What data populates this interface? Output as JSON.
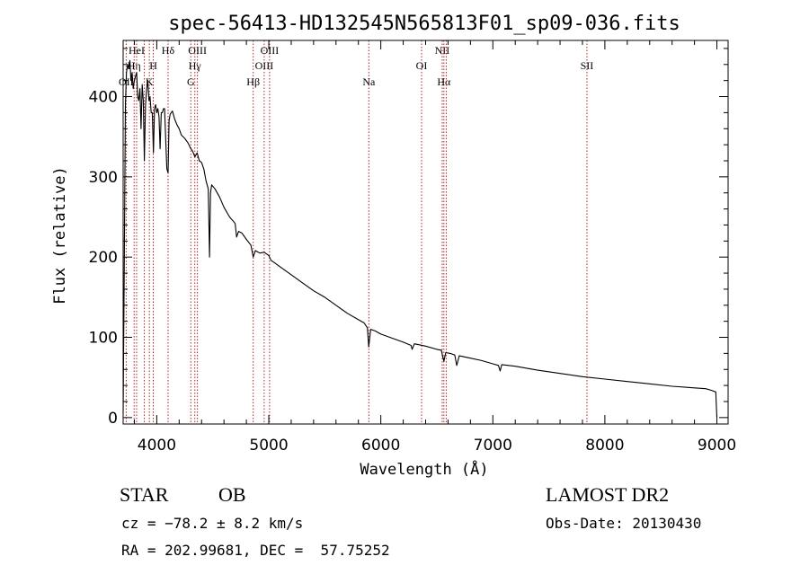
{
  "chart_data": {
    "type": "line",
    "title": "spec-56413-HD132545N565813F01_sp09-036.fits",
    "xlabel": "Wavelength (Å)",
    "ylabel": "Flux (relative)",
    "xlim": [
      3700,
      9100
    ],
    "ylim": [
      -8,
      470
    ],
    "x_ticks": [
      4000,
      5000,
      6000,
      7000,
      8000,
      9000
    ],
    "y_ticks": [
      0,
      100,
      200,
      300,
      400
    ],
    "grid": false,
    "series": [
      {
        "x": [
          3700,
          3710,
          3720,
          3730,
          3740,
          3750,
          3760,
          3770,
          3780,
          3790,
          3800,
          3810,
          3820,
          3830,
          3840,
          3850,
          3860,
          3870,
          3880,
          3889,
          3900,
          3910,
          3920,
          3930,
          3940,
          3950,
          3960,
          3970,
          3980,
          3990,
          4000,
          4010,
          4020,
          4030,
          4040,
          4050,
          4060,
          4070,
          4080,
          4090,
          4101,
          4110,
          4120,
          4140,
          4160,
          4180,
          4200,
          4220,
          4250,
          4280,
          4300,
          4320,
          4340,
          4360,
          4380,
          4400,
          4420,
          4440,
          4460,
          4471,
          4480,
          4490,
          4520,
          4560,
          4600,
          4650,
          4700,
          4713,
          4730,
          4760,
          4800,
          4840,
          4861,
          4880,
          4920,
          4960,
          5000,
          5020,
          5050,
          5100,
          5200,
          5300,
          5400,
          5500,
          5600,
          5700,
          5800,
          5850,
          5880,
          5892,
          5910,
          5950,
          6000,
          6100,
          6200,
          6270,
          6280,
          6300,
          6400,
          6500,
          6540,
          6563,
          6580,
          6620,
          6660,
          6678,
          6700,
          6800,
          6900,
          7000,
          7050,
          7065,
          7080,
          7200,
          7400,
          7600,
          7800,
          8000,
          8200,
          8400,
          8600,
          8800,
          8900,
          8950,
          8990,
          9000
        ],
        "values": [
          5,
          180,
          390,
          430,
          440,
          435,
          445,
          420,
          430,
          410,
          420,
          425,
          430,
          400,
          395,
          410,
          360,
          415,
          395,
          320,
          390,
          410,
          420,
          395,
          400,
          380,
          380,
          330,
          385,
          390,
          380,
          385,
          375,
          335,
          380,
          380,
          385,
          385,
          345,
          310,
          305,
          370,
          378,
          382,
          372,
          365,
          360,
          352,
          348,
          342,
          336,
          332,
          325,
          330,
          320,
          318,
          310,
          295,
          285,
          200,
          280,
          290,
          285,
          275,
          262,
          250,
          242,
          225,
          232,
          230,
          222,
          215,
          200,
          208,
          205,
          206,
          202,
          196,
          193,
          188,
          178,
          168,
          158,
          150,
          140,
          130,
          122,
          118,
          112,
          88,
          110,
          108,
          104,
          99,
          94,
          90,
          85,
          92,
          89,
          85,
          84,
          70,
          81,
          80,
          78,
          65,
          77,
          74,
          71,
          67,
          65,
          58,
          66,
          64,
          59,
          55,
          51,
          48,
          45,
          42,
          39,
          37,
          36,
          34,
          32,
          0
        ]
      }
    ],
    "line_markers": [
      {
        "x": 3727,
        "label": "OII",
        "level": 3
      },
      {
        "x": 3798,
        "label": "Hη",
        "level": 2
      },
      {
        "x": 3820,
        "label": "HeI",
        "level": 1
      },
      {
        "x": 3889,
        "label": "",
        "level": 0
      },
      {
        "x": 3934,
        "label": "K",
        "level": 3
      },
      {
        "x": 3969,
        "label": "H",
        "level": 2
      },
      {
        "x": 4101,
        "label": "Hδ",
        "level": 1
      },
      {
        "x": 4304,
        "label": "G",
        "level": 3
      },
      {
        "x": 4340,
        "label": "Hγ",
        "level": 2
      },
      {
        "x": 4363,
        "label": "OIII",
        "level": 1
      },
      {
        "x": 4861,
        "label": "Hβ",
        "level": 3
      },
      {
        "x": 4959,
        "label": "OIII",
        "level": 2
      },
      {
        "x": 5007,
        "label": "OIII",
        "level": 1
      },
      {
        "x": 5893,
        "label": "Na",
        "level": 3
      },
      {
        "x": 6364,
        "label": "OI",
        "level": 2
      },
      {
        "x": 6548,
        "label": "NII",
        "level": 1
      },
      {
        "x": 6563,
        "label": "Hα",
        "level": 3
      },
      {
        "x": 6584,
        "label": "",
        "level": 0
      },
      {
        "x": 7840,
        "label": "SII",
        "level": 2
      }
    ]
  },
  "info": {
    "object_type": "STAR",
    "subclass": "OB",
    "survey": "LAMOST DR2",
    "redshift": "cz = −78.2 ± 8.2 km/s",
    "obs_date": "Obs-Date: 20130430",
    "coords": "RA = 202.99681, DEC =  57.75252"
  }
}
